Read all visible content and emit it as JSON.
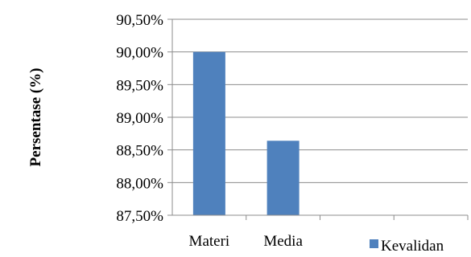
{
  "chart_data": {
    "type": "bar",
    "categories": [
      "Materi",
      "Media",
      "",
      ""
    ],
    "series": [
      {
        "name": "Kevalidan",
        "values": [
          90.0,
          88.64,
          null,
          null
        ],
        "color": "#4F81BD"
      }
    ],
    "ylabel": "Persentase (%)",
    "xlabel": "",
    "ylim": [
      87.5,
      90.5
    ],
    "yticks": [
      87.5,
      88.0,
      88.5,
      89.0,
      89.5,
      90.0,
      90.5
    ],
    "ytick_labels": [
      "87,50%",
      "88,00%",
      "88,50%",
      "89,00%",
      "89,50%",
      "90,00%",
      "90,50%"
    ],
    "grid": true,
    "legend": "bottom-right"
  }
}
